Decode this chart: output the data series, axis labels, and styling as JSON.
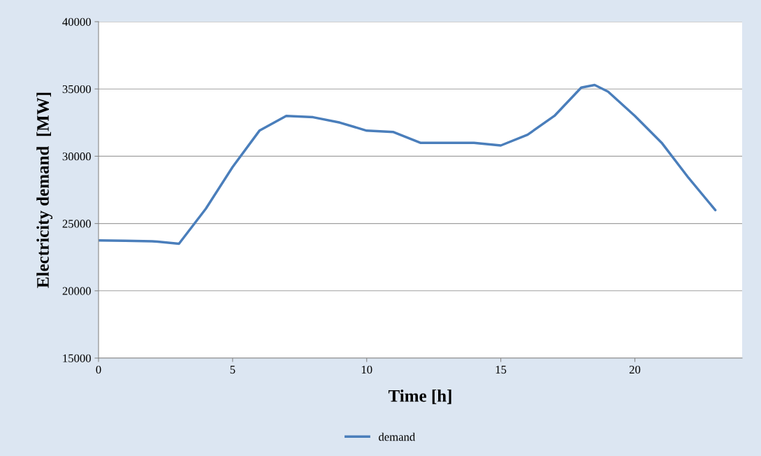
{
  "chart_data": {
    "type": "line",
    "xlabel": "Time [h]",
    "ylabel": "Electricity demand  [MW]",
    "xlim": [
      0,
      24
    ],
    "xticks": [
      0,
      5,
      10,
      15,
      20
    ],
    "ylim": [
      15000,
      40000
    ],
    "yticks": [
      15000,
      20000,
      25000,
      30000,
      35000,
      40000
    ],
    "grid": "y",
    "legend": "bottom",
    "marker": "none",
    "line_style": "solid",
    "series": [
      {
        "name": "demand",
        "color": "#4a7ebb",
        "x": [
          0,
          1,
          2,
          2.2,
          3,
          4,
          5,
          6,
          7,
          8,
          9,
          10,
          11,
          12,
          13,
          14,
          15,
          16,
          17,
          18,
          18.5,
          19,
          20,
          21,
          22,
          23
        ],
        "values": [
          23750,
          23720,
          23680,
          23650,
          23500,
          26100,
          29200,
          31900,
          33000,
          32900,
          32500,
          31900,
          31800,
          31000,
          31000,
          31000,
          30800,
          31600,
          33000,
          35100,
          35300,
          34800,
          33000,
          31000,
          28400,
          26000
        ]
      }
    ]
  }
}
